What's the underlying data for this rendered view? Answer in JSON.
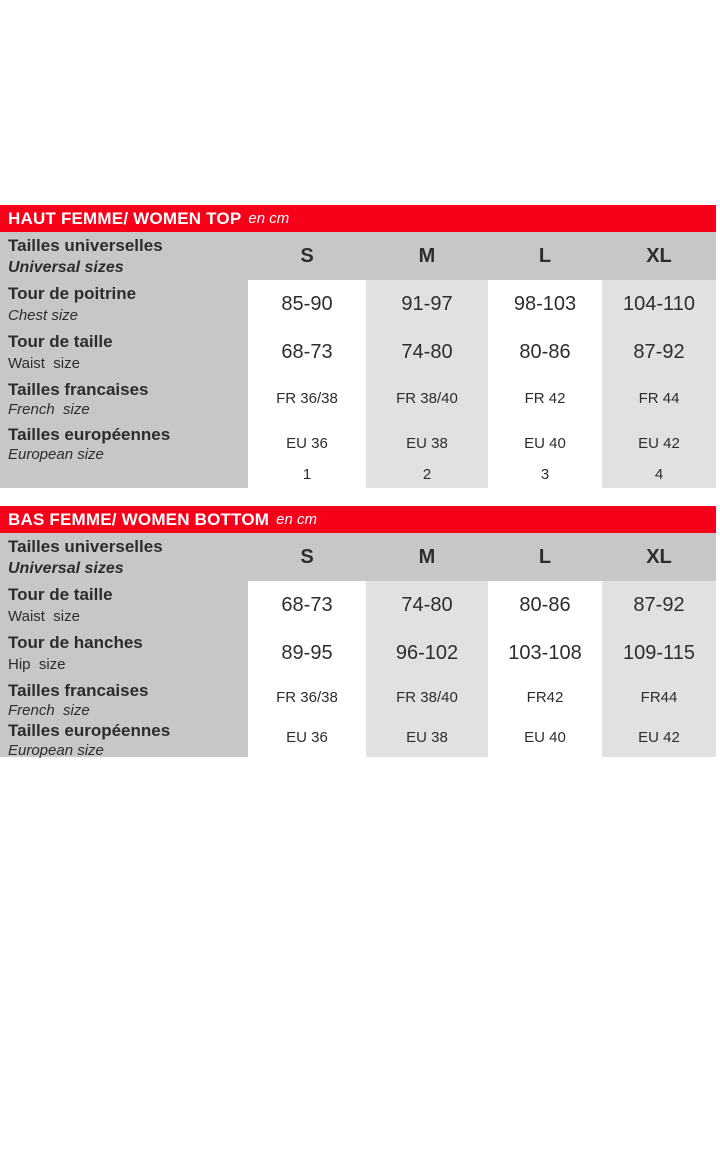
{
  "colors": {
    "header_bar": "#f70019",
    "header_band": "#c7c7c7",
    "alt_column": "#e1e1e1",
    "text": "#2d2d2d",
    "bar_text": "#ffffff"
  },
  "tables": [
    {
      "title": "HAUT FEMME/ WOMEN TOP",
      "unit": "en cm",
      "header": {
        "fr": "Tailles universelles",
        "en": "Universal sizes",
        "sizes": [
          "S",
          "M",
          "L",
          "XL"
        ]
      },
      "rows": [
        {
          "fr": "Tour de poitrine",
          "en": "Chest size",
          "values": [
            "85-90",
            "91-97",
            "98-103",
            "104-110"
          ]
        },
        {
          "fr": "Tour de taille",
          "en": "Waist  size",
          "values": [
            "68-73",
            "74-80",
            "80-86",
            "87-92"
          ]
        },
        {
          "fr": "Tailles francaises",
          "en": "French  size",
          "values": [
            "FR 36/38",
            "FR 38/40",
            "FR 42",
            "FR 44"
          ]
        },
        {
          "fr": "Tailles européennes",
          "en": "European size",
          "values": [
            "EU 36",
            "EU 38",
            "EU 40",
            "EU 42"
          ]
        },
        {
          "fr": "",
          "en": "",
          "values": [
            "1",
            "2",
            "3",
            "4"
          ]
        }
      ]
    },
    {
      "title": "BAS FEMME/ WOMEN BOTTOM",
      "unit": "en cm",
      "header": {
        "fr": "Tailles universelles",
        "en": "Universal sizes",
        "sizes": [
          "S",
          "M",
          "L",
          "XL"
        ]
      },
      "rows": [
        {
          "fr": "Tour de taille",
          "en": "Waist  size",
          "values": [
            "68-73",
            "74-80",
            "80-86",
            "87-92"
          ]
        },
        {
          "fr": "Tour de hanches",
          "en": "Hip  size",
          "values": [
            "89-95",
            "96-102",
            "103-108",
            "109-115"
          ]
        },
        {
          "fr": "Tailles francaises",
          "en": "French  size",
          "values": [
            "FR 36/38",
            "FR 38/40",
            "FR42",
            "FR44"
          ]
        },
        {
          "fr": "Tailles européennes",
          "en": "European size",
          "values": [
            "EU 36",
            "EU 38",
            "EU 40",
            "EU 42"
          ]
        }
      ]
    }
  ]
}
